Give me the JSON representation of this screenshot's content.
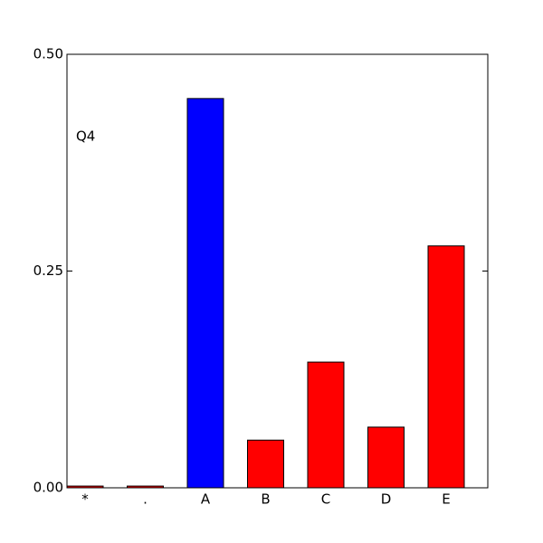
{
  "chart_data": {
    "type": "bar",
    "annotation": "Q4",
    "categories": [
      "*",
      ".",
      "A",
      "B",
      "C",
      "D",
      "E"
    ],
    "values": [
      0.002,
      0.002,
      0.449,
      0.055,
      0.145,
      0.07,
      0.279
    ],
    "colors": [
      "#ff0000",
      "#ff0000",
      "#0000ff",
      "#ff0000",
      "#ff0000",
      "#ff0000",
      "#ff0000"
    ],
    "ylim": [
      0,
      0.5
    ],
    "yticks": [
      {
        "value": 0,
        "label": "0.00"
      },
      {
        "value": 0.25,
        "label": "0.25"
      },
      {
        "value": 0.5,
        "label": "0.50"
      }
    ],
    "grid": false
  }
}
